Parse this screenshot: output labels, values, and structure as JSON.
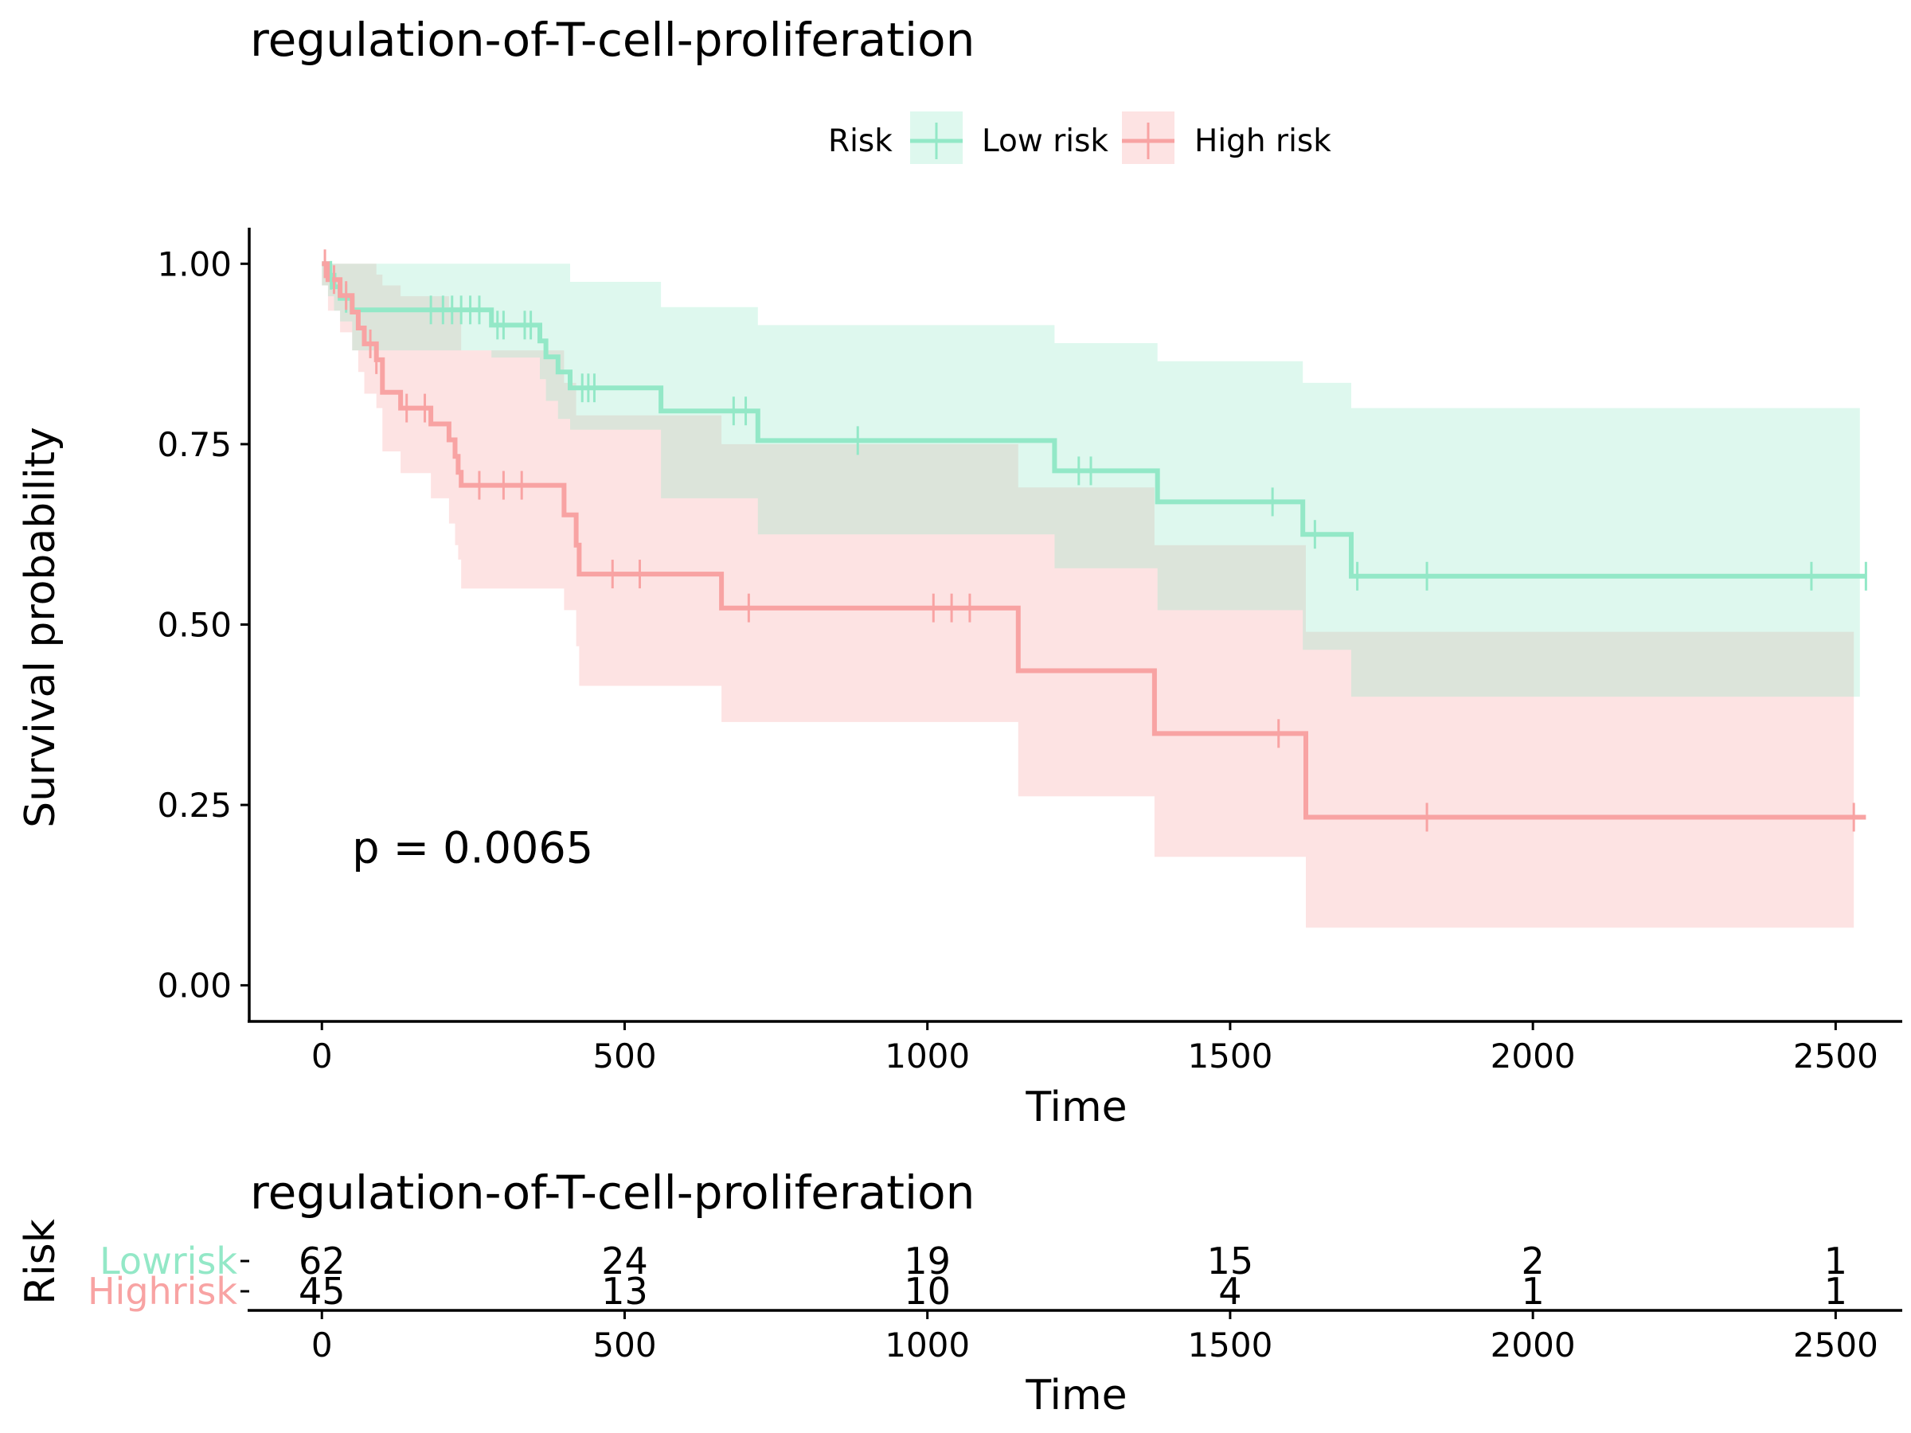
{
  "chart_data": [
    {
      "type": "line",
      "subtype": "kaplan-meier",
      "title": "regulation-of-T-cell-proliferation",
      "xlabel": "Time",
      "ylabel": "Survival probability",
      "xlim": [
        -120,
        2610
      ],
      "ylim": [
        -0.05,
        1.05
      ],
      "x_ticks": [
        0,
        500,
        1000,
        1500,
        2000,
        2500
      ],
      "x_tick_labels": [
        "0",
        "500",
        "1000",
        "1500",
        "2000",
        "2500"
      ],
      "y_ticks": [
        0,
        0.25,
        0.5,
        0.75,
        1.0
      ],
      "y_tick_labels": [
        "0.00",
        "0.25",
        "0.50",
        "0.75",
        "1.00"
      ],
      "grid": false,
      "legend": {
        "title": "Risk",
        "position": "top"
      },
      "annotation": "p = 0.0065",
      "annotation_pos": {
        "x": 50,
        "y": 0.19
      },
      "series": [
        {
          "name": "Low risk",
          "color": "#93E8C7",
          "steps": [
            [
              0,
              1.0
            ],
            [
              10,
              0.984
            ],
            [
              20,
              0.968
            ],
            [
              30,
              0.952
            ],
            [
              50,
              0.936
            ],
            [
              280,
              0.915
            ],
            [
              360,
              0.893
            ],
            [
              370,
              0.871
            ],
            [
              390,
              0.85
            ],
            [
              410,
              0.828
            ],
            [
              560,
              0.796
            ],
            [
              720,
              0.755
            ],
            [
              1210,
              0.713
            ],
            [
              1380,
              0.67
            ],
            [
              1620,
              0.625
            ],
            [
              1700,
              0.567
            ],
            [
              2550,
              0.567
            ]
          ],
          "upper": [
            [
              0,
              1.0
            ],
            [
              50,
              1.0
            ],
            [
              360,
              1.0
            ],
            [
              410,
              0.975
            ],
            [
              560,
              0.94
            ],
            [
              720,
              0.915
            ],
            [
              1210,
              0.89
            ],
            [
              1380,
              0.865
            ],
            [
              1620,
              0.835
            ],
            [
              1700,
              0.8
            ],
            [
              2540,
              0.8
            ]
          ],
          "lower": [
            [
              0,
              0.97
            ],
            [
              10,
              0.955
            ],
            [
              20,
              0.935
            ],
            [
              30,
              0.92
            ],
            [
              50,
              0.88
            ],
            [
              280,
              0.87
            ],
            [
              360,
              0.84
            ],
            [
              370,
              0.81
            ],
            [
              390,
              0.785
            ],
            [
              410,
              0.77
            ],
            [
              560,
              0.675
            ],
            [
              720,
              0.625
            ],
            [
              1210,
              0.578
            ],
            [
              1380,
              0.52
            ],
            [
              1620,
              0.465
            ],
            [
              1700,
              0.4
            ],
            [
              2540,
              0.4
            ]
          ],
          "censor_times": [
            15,
            40,
            180,
            200,
            215,
            230,
            245,
            260,
            290,
            300,
            335,
            345,
            430,
            440,
            450,
            680,
            700,
            885,
            1250,
            1270,
            1570,
            1640,
            1710,
            1825,
            2460,
            2550
          ]
        },
        {
          "name": "High risk",
          "color": "#F8A3A3",
          "steps": [
            [
              0,
              1.0
            ],
            [
              10,
              0.978
            ],
            [
              30,
              0.956
            ],
            [
              50,
              0.933
            ],
            [
              60,
              0.911
            ],
            [
              70,
              0.889
            ],
            [
              90,
              0.867
            ],
            [
              100,
              0.822
            ],
            [
              130,
              0.8
            ],
            [
              180,
              0.778
            ],
            [
              210,
              0.756
            ],
            [
              220,
              0.733
            ],
            [
              225,
              0.711
            ],
            [
              230,
              0.693
            ],
            [
              400,
              0.652
            ],
            [
              420,
              0.61
            ],
            [
              425,
              0.57
            ],
            [
              660,
              0.523
            ],
            [
              1150,
              0.436
            ],
            [
              1375,
              0.349
            ],
            [
              1625,
              0.233
            ],
            [
              2550,
              0.233
            ]
          ],
          "upper": [
            [
              0,
              1.0
            ],
            [
              70,
              1.0
            ],
            [
              90,
              0.985
            ],
            [
              100,
              0.97
            ],
            [
              130,
              0.955
            ],
            [
              210,
              0.94
            ],
            [
              230,
              0.88
            ],
            [
              400,
              0.835
            ],
            [
              420,
              0.79
            ],
            [
              660,
              0.75
            ],
            [
              1150,
              0.69
            ],
            [
              1375,
              0.61
            ],
            [
              1625,
              0.49
            ],
            [
              2530,
              0.49
            ]
          ],
          "lower": [
            [
              0,
              0.97
            ],
            [
              10,
              0.935
            ],
            [
              30,
              0.905
            ],
            [
              50,
              0.88
            ],
            [
              60,
              0.85
            ],
            [
              70,
              0.82
            ],
            [
              90,
              0.8
            ],
            [
              100,
              0.74
            ],
            [
              130,
              0.71
            ],
            [
              180,
              0.675
            ],
            [
              210,
              0.64
            ],
            [
              220,
              0.61
            ],
            [
              225,
              0.59
            ],
            [
              230,
              0.55
            ],
            [
              400,
              0.52
            ],
            [
              420,
              0.47
            ],
            [
              425,
              0.415
            ],
            [
              660,
              0.365
            ],
            [
              1150,
              0.262
            ],
            [
              1375,
              0.178
            ],
            [
              1625,
              0.08
            ],
            [
              2530,
              0.08
            ]
          ],
          "censor_times": [
            5,
            20,
            40,
            80,
            90,
            140,
            170,
            260,
            300,
            330,
            480,
            525,
            705,
            1010,
            1040,
            1070,
            1580,
            1825,
            2530
          ]
        }
      ]
    },
    {
      "type": "table",
      "subtype": "number-at-risk",
      "title": "regulation-of-T-cell-proliferation",
      "xlabel": "Time",
      "ylabel": "Risk",
      "xlim": [
        -120,
        2610
      ],
      "x_ticks": [
        0,
        500,
        1000,
        1500,
        2000,
        2500
      ],
      "x_tick_labels": [
        "0",
        "500",
        "1000",
        "1500",
        "2000",
        "2500"
      ],
      "rows": [
        {
          "name": "Lowrisk",
          "color": "#93E8C7",
          "values": [
            "62",
            "24",
            "19",
            "15",
            "2",
            "1"
          ]
        },
        {
          "name": "Highrisk",
          "color": "#F8A3A3",
          "values": [
            "45",
            "13",
            "10",
            "4",
            "1",
            "1"
          ]
        }
      ]
    }
  ]
}
